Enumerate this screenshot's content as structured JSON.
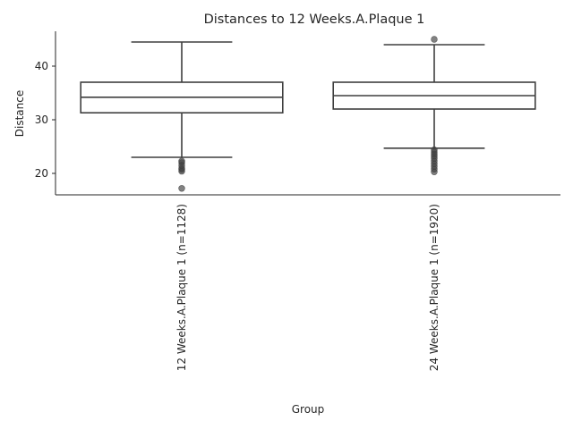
{
  "chart_data": {
    "type": "box",
    "title": "Distances to 12 Weeks.A.Plaque 1",
    "xlabel": "Group",
    "ylabel": "Distance",
    "ylim": [
      16,
      46.5
    ],
    "yticks": [
      20,
      30,
      40
    ],
    "grid": false,
    "legend": "none",
    "categories": [
      "12 Weeks.A.Plaque 1 (n=1128)",
      "24 Weeks.A.Plaque 1 (n=1920)"
    ],
    "boxes": [
      {
        "whisker_low": 23.0,
        "q1": 31.3,
        "median": 34.2,
        "q3": 37.0,
        "whisker_high": 44.5,
        "outliers": [
          22.3,
          22.0,
          21.5,
          21.0,
          20.7,
          20.4,
          17.2
        ]
      },
      {
        "whisker_low": 24.7,
        "q1": 32.0,
        "median": 34.5,
        "q3": 37.0,
        "whisker_high": 44.0,
        "outliers": [
          45.0,
          24.4,
          24.0,
          23.6,
          23.2,
          22.8,
          22.3,
          21.8,
          21.3,
          20.8,
          20.3
        ]
      }
    ],
    "colors": {
      "box_edge": "#3f3f3f",
      "outlier": "#3f3f3f",
      "text": "#262626",
      "axis": "#262626"
    }
  }
}
